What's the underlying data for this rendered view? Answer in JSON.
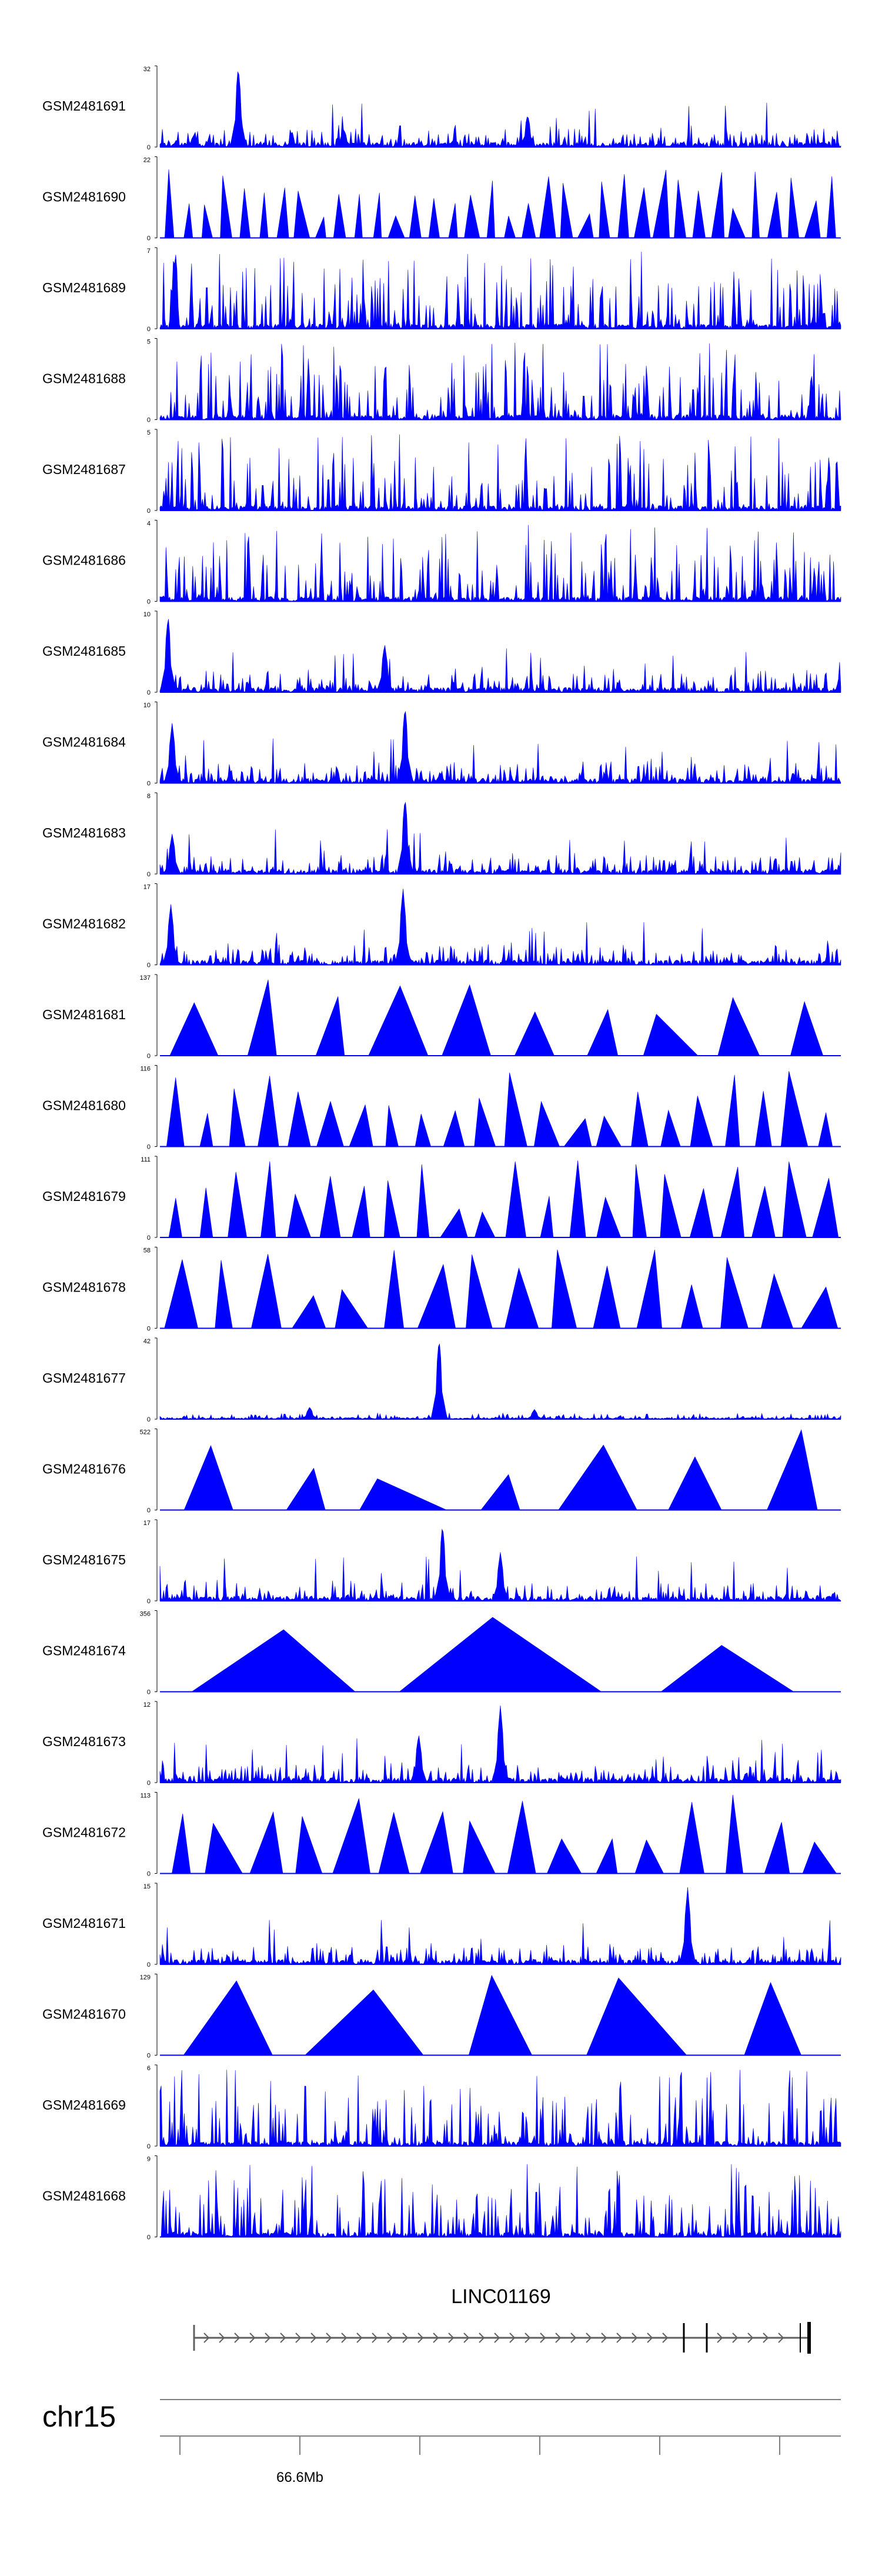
{
  "chart_data": {
    "type": "area",
    "title": "",
    "colors": {
      "signal": "#0000ff",
      "axis": "#000000",
      "gene": "#606060",
      "ideogram": "#808080"
    },
    "tracks": [
      {
        "name": "GSM2481691",
        "ymax": "32",
        "ymin": "0",
        "style": "dense",
        "seed": 11,
        "peaks": [
          [
            0.115,
            1.0
          ],
          [
            0.54,
            0.4
          ],
          [
            0.27,
            0.22
          ],
          [
            0.05,
            0.15
          ]
        ]
      },
      {
        "name": "GSM2481690",
        "ymax": "22",
        "ymin": "0",
        "style": "tri",
        "seed": 12,
        "count": 36,
        "minh": 0.25,
        "maxh": 0.85
      },
      {
        "name": "GSM2481689",
        "ymax": "7",
        "ymin": "0",
        "style": "dense",
        "seed": 13,
        "peaks": []
      },
      {
        "name": "GSM2481688",
        "ymax": "5",
        "ymin": "0",
        "style": "dense",
        "seed": 14,
        "peaks": []
      },
      {
        "name": "GSM2481687",
        "ymax": "5",
        "ymin": "0",
        "style": "dense",
        "seed": 15,
        "peaks": []
      },
      {
        "name": "GSM2481686",
        "ymax": "4",
        "ymin": "0",
        "style": "dense",
        "seed": 16,
        "peaks": []
      },
      {
        "name": "GSM2481685",
        "ymax": "10",
        "ymin": "0",
        "style": "dense",
        "seed": 17,
        "peaks": [
          [
            0.012,
            0.95
          ],
          [
            0.33,
            0.6
          ]
        ]
      },
      {
        "name": "GSM2481684",
        "ymax": "10",
        "ymin": "0",
        "style": "dense",
        "seed": 18,
        "peaks": [
          [
            0.018,
            0.75
          ],
          [
            0.36,
            0.95
          ]
        ]
      },
      {
        "name": "GSM2481683",
        "ymax": "8",
        "ymin": "0",
        "style": "dense",
        "seed": 19,
        "peaks": [
          [
            0.36,
            0.95
          ],
          [
            0.018,
            0.5
          ]
        ]
      },
      {
        "name": "GSM2481682",
        "ymax": "17",
        "ymin": "0",
        "style": "dense",
        "seed": 20,
        "peaks": [
          [
            0.016,
            0.75
          ],
          [
            0.357,
            0.95
          ]
        ]
      },
      {
        "name": "GSM2481681",
        "ymax": "137",
        "ymin": "0",
        "style": "tri",
        "seed": 21,
        "count": 10,
        "minh": 0.5,
        "maxh": 1.0
      },
      {
        "name": "GSM2481680",
        "ymax": "116",
        "ymin": "0",
        "style": "tri",
        "seed": 22,
        "count": 22,
        "minh": 0.3,
        "maxh": 1.0
      },
      {
        "name": "GSM2481679",
        "ymax": "111",
        "ymin": "0",
        "style": "tri",
        "seed": 23,
        "count": 22,
        "minh": 0.3,
        "maxh": 1.0
      },
      {
        "name": "GSM2481678",
        "ymax": "58",
        "ymin": "0",
        "style": "tri",
        "seed": 24,
        "count": 16,
        "minh": 0.4,
        "maxh": 1.0
      },
      {
        "name": "GSM2481677",
        "ymax": "42",
        "ymin": "0",
        "style": "sparse",
        "seed": 25,
        "peaks": [
          [
            0.41,
            1.0
          ],
          [
            0.22,
            0.15
          ],
          [
            0.55,
            0.12
          ]
        ]
      },
      {
        "name": "GSM2481676",
        "ymax": "522",
        "ymin": "0",
        "style": "tri",
        "seed": 26,
        "count": 7,
        "minh": 0.3,
        "maxh": 1.0
      },
      {
        "name": "GSM2481675",
        "ymax": "17",
        "ymin": "0",
        "style": "dense",
        "seed": 27,
        "peaks": [
          [
            0.415,
            0.95
          ],
          [
            0.5,
            0.6
          ]
        ]
      },
      {
        "name": "GSM2481674",
        "ymax": "356",
        "ymin": "0",
        "style": "tri",
        "seed": 28,
        "count": 3,
        "minh": 0.3,
        "maxh": 1.0
      },
      {
        "name": "GSM2481673",
        "ymax": "12",
        "ymin": "0",
        "style": "dense",
        "seed": 29,
        "peaks": [
          [
            0.5,
            0.95
          ],
          [
            0.38,
            0.6
          ]
        ]
      },
      {
        "name": "GSM2481672",
        "ymax": "113",
        "ymin": "0",
        "style": "tri",
        "seed": 30,
        "count": 16,
        "minh": 0.3,
        "maxh": 1.0
      },
      {
        "name": "GSM2481671",
        "ymax": "15",
        "ymin": "0",
        "style": "dense",
        "seed": 31,
        "peaks": [
          [
            0.775,
            0.95
          ]
        ]
      },
      {
        "name": "GSM2481670",
        "ymax": "129",
        "ymin": "0",
        "style": "tri",
        "seed": 32,
        "count": 5,
        "minh": 0.8,
        "maxh": 1.0
      },
      {
        "name": "GSM2481669",
        "ymax": "6",
        "ymin": "0",
        "style": "dense",
        "seed": 33,
        "peaks": []
      },
      {
        "name": "GSM2481668",
        "ymax": "9",
        "ymin": "0",
        "style": "dense",
        "seed": 34,
        "peaks": []
      }
    ],
    "gene": {
      "name": "LINC01169",
      "strand": "+"
    },
    "chromosome": "chr15",
    "axis_tick_labels": [
      "66.6Mb"
    ]
  }
}
